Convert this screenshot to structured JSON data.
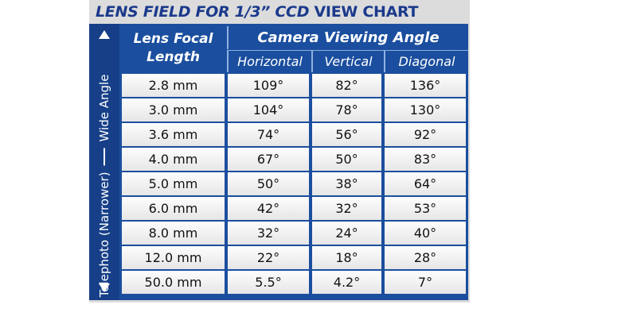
{
  "title": {
    "main": "LENS FIELD FOR 1/3” CCD",
    "end": "VIEW CHART"
  },
  "side_label": {
    "bottom": "Telephoto (Narrower)",
    "top": "Wide Angle"
  },
  "table": {
    "header": {
      "lens": "Lens Focal Length",
      "angle": "Camera Viewing Angle",
      "sub": [
        "Horizontal",
        "Vertical",
        "Diagonal"
      ]
    },
    "rows": [
      [
        "2.8 mm",
        "109°",
        "82°",
        "136°"
      ],
      [
        "3.0 mm",
        "104°",
        "78°",
        "130°"
      ],
      [
        "3.6 mm",
        "74°",
        "56°",
        "92°"
      ],
      [
        "4.0 mm",
        "67°",
        "50°",
        "83°"
      ],
      [
        "5.0 mm",
        "50°",
        "38°",
        "64°"
      ],
      [
        "6.0 mm",
        "42°",
        "32°",
        "53°"
      ],
      [
        "8.0 mm",
        "32°",
        "24°",
        "40°"
      ],
      [
        "12.0 mm",
        "22°",
        "18°",
        "28°"
      ],
      [
        "50.0 mm",
        "5.5°",
        "4.2°",
        "7°"
      ]
    ]
  }
}
